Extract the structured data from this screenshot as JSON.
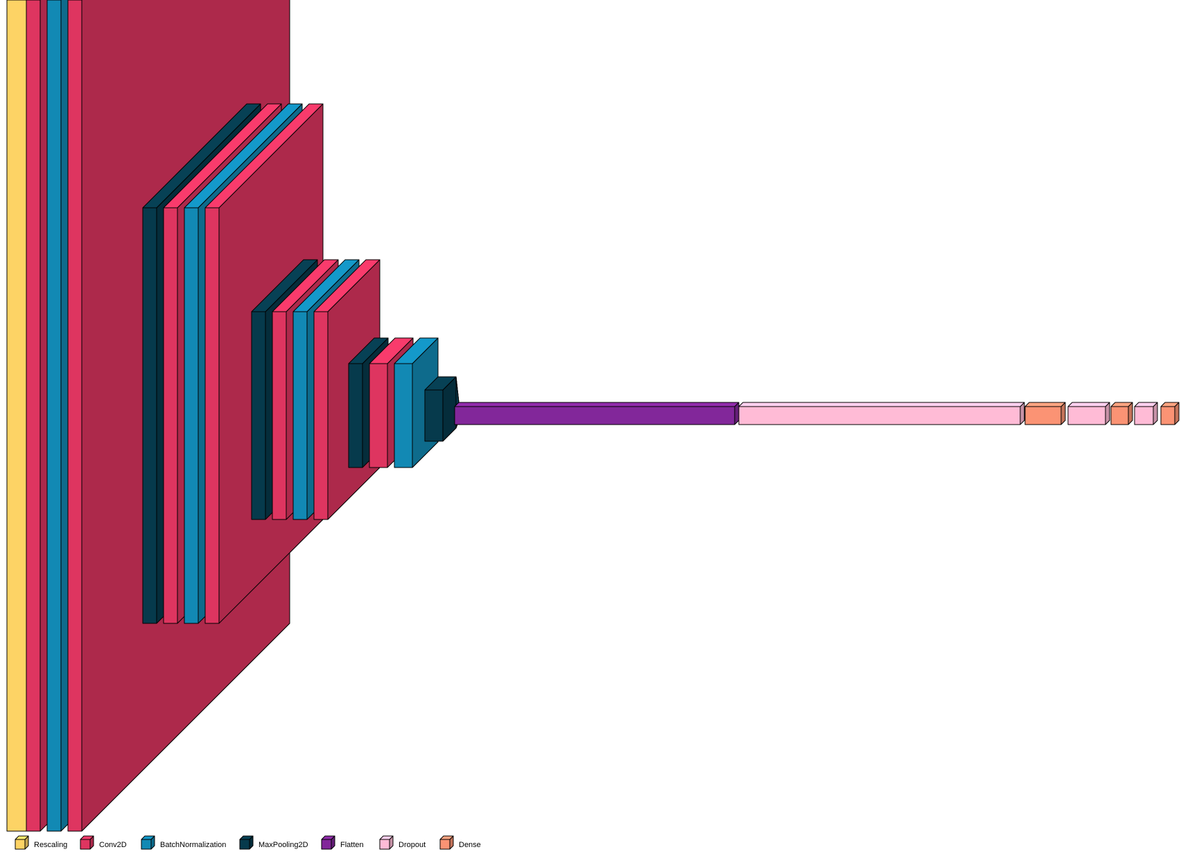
{
  "layer_types": [
    {
      "key": "rescaling",
      "color": "#FDD365"
    },
    {
      "key": "conv",
      "color": "#DE3560"
    },
    {
      "key": "bn",
      "color": "#1289B4"
    },
    {
      "key": "pool",
      "color": "#063A4C"
    },
    {
      "key": "flatten",
      "color": "#82279A"
    },
    {
      "key": "dropout",
      "color": "#FFBBD6"
    },
    {
      "key": "dense",
      "color": "#FB9374"
    }
  ],
  "layers": [
    {
      "type": "rescaling"
    },
    {
      "type": "conv"
    },
    {
      "type": "bn"
    },
    {
      "type": "conv"
    },
    {
      "type": "pool"
    },
    {
      "type": "conv"
    },
    {
      "type": "bn"
    },
    {
      "type": "conv"
    },
    {
      "type": "pool"
    },
    {
      "type": "conv"
    },
    {
      "type": "bn"
    },
    {
      "type": "conv"
    },
    {
      "type": "pool"
    },
    {
      "type": "conv"
    },
    {
      "type": "bn"
    },
    {
      "type": "pool"
    },
    {
      "type": "flatten"
    },
    {
      "type": "dropout"
    },
    {
      "type": "dense"
    },
    {
      "type": "dropout"
    },
    {
      "type": "dense"
    },
    {
      "type": "dropout"
    },
    {
      "type": "dense"
    }
  ],
  "legend": [
    {
      "label": "Rescaling",
      "color": "#FDD365",
      "icon": "rescaling-cube-icon"
    },
    {
      "label": "Conv2D",
      "color": "#DE3560",
      "icon": "conv2d-cube-icon"
    },
    {
      "label": "BatchNormalization",
      "color": "#1289B4",
      "icon": "batchnorm-cube-icon"
    },
    {
      "label": "MaxPooling2D",
      "color": "#063A4C",
      "icon": "maxpool-cube-icon"
    },
    {
      "label": "Flatten",
      "color": "#82279A",
      "icon": "flatten-cube-icon"
    },
    {
      "label": "Dropout",
      "color": "#FFBBD6",
      "icon": "dropout-cube-icon"
    },
    {
      "label": "Dense",
      "color": "#FB9374",
      "icon": "dense-cube-icon"
    }
  ]
}
